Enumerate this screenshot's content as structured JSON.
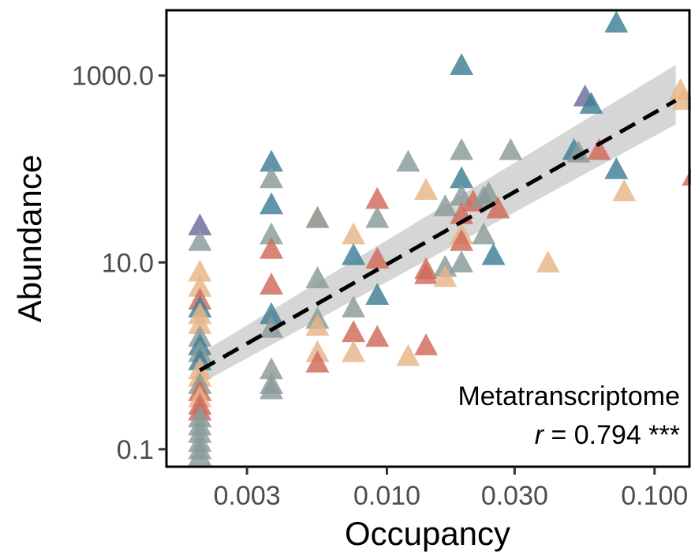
{
  "chart_data": {
    "type": "scatter",
    "title": "",
    "xlabel": "Occupancy",
    "ylabel": "Abundance",
    "x_scale": "log",
    "y_scale": "log",
    "xlim": [
      0.0015,
      0.135
    ],
    "ylim": [
      0.065,
      5000
    ],
    "x_ticks": [
      0.003,
      0.01,
      0.03,
      0.1
    ],
    "x_tick_labels": [
      "0.003",
      "0.010",
      "0.030",
      "0.100"
    ],
    "y_ticks": [
      0.1,
      10,
      1000
    ],
    "y_tick_labels": [
      "0.1",
      "10.0",
      "1000.0"
    ],
    "grid": false,
    "legend": "none",
    "marker": "triangle",
    "palette": [
      "#3e7f95",
      "#5c7f96",
      "#8a9a9a",
      "#d06a5a",
      "#e8b488",
      "#6b6a9a"
    ],
    "annotation": {
      "dataset": "Metatranscriptome",
      "r_symbol": "r",
      "r_text": " = 0.794 ***"
    },
    "fit": {
      "type": "linear (log-log)",
      "line_style": "dashed",
      "x": [
        0.002,
        0.12
      ],
      "y": [
        0.7,
        540
      ],
      "ci_lower": [
        0.5,
        300
      ],
      "ci_upper": [
        1.05,
        1300
      ]
    },
    "points": [
      [
        0.002,
        25,
        "#6b6a9a"
      ],
      [
        0.002,
        17,
        "#8a9a9a"
      ],
      [
        0.002,
        8,
        "#e8b488"
      ],
      [
        0.002,
        5.5,
        "#e8b488"
      ],
      [
        0.002,
        4,
        "#d06a5a"
      ],
      [
        0.002,
        3.3,
        "#3e7f95"
      ],
      [
        0.002,
        2.8,
        "#e8b488"
      ],
      [
        0.002,
        2.2,
        "#e8b488"
      ],
      [
        0.002,
        1.6,
        "#8a9a9a"
      ],
      [
        0.002,
        1.3,
        "#3e7f95"
      ],
      [
        0.002,
        1.1,
        "#8a9a9a"
      ],
      [
        0.002,
        0.9,
        "#3e7f95"
      ],
      [
        0.002,
        0.72,
        "#e8b488"
      ],
      [
        0.002,
        0.6,
        "#e8b488"
      ],
      [
        0.002,
        0.5,
        "#8a9a9a"
      ],
      [
        0.002,
        0.42,
        "#d06a5a"
      ],
      [
        0.002,
        0.36,
        "#e8b488"
      ],
      [
        0.002,
        0.3,
        "#d06a5a"
      ],
      [
        0.002,
        0.26,
        "#d06a5a"
      ],
      [
        0.002,
        0.22,
        "#8a9a9a"
      ],
      [
        0.002,
        0.18,
        "#8a9a9a"
      ],
      [
        0.002,
        0.15,
        "#8a9a9a"
      ],
      [
        0.002,
        0.12,
        "#8a9a9a"
      ],
      [
        0.002,
        0.1,
        "#8a9a9a"
      ],
      [
        0.002,
        0.085,
        "#8a9a9a"
      ],
      [
        0.0037,
        120,
        "#3e7f95"
      ],
      [
        0.0037,
        80,
        "#8a9a9a"
      ],
      [
        0.0037,
        42,
        "#3e7f95"
      ],
      [
        0.0037,
        20,
        "#8a9a9a"
      ],
      [
        0.0037,
        14,
        "#d06a5a"
      ],
      [
        0.0037,
        5.8,
        "#d06a5a"
      ],
      [
        0.0037,
        2.8,
        "#3e7f95"
      ],
      [
        0.0037,
        2.0,
        "#8a9a9a"
      ],
      [
        0.0037,
        0.72,
        "#8a9a9a"
      ],
      [
        0.0037,
        0.5,
        "#8a9a9a"
      ],
      [
        0.0037,
        0.44,
        "#8a9a9a"
      ],
      [
        0.0055,
        30,
        "#e8b488"
      ],
      [
        0.0055,
        30,
        "#8a9a9a"
      ],
      [
        0.0055,
        6.8,
        "#8a9a9a"
      ],
      [
        0.0055,
        2.5,
        "#8a9a9a"
      ],
      [
        0.0055,
        2.1,
        "#e8b488"
      ],
      [
        0.0055,
        1.1,
        "#e8b488"
      ],
      [
        0.0055,
        0.85,
        "#d06a5a"
      ],
      [
        0.0075,
        20,
        "#e8b488"
      ],
      [
        0.0075,
        12,
        "#3e7f95"
      ],
      [
        0.0075,
        3.3,
        "#8a9a9a"
      ],
      [
        0.0075,
        1.8,
        "#d06a5a"
      ],
      [
        0.0075,
        1.1,
        "#e8b488"
      ],
      [
        0.0092,
        48,
        "#d06a5a"
      ],
      [
        0.0092,
        30,
        "#8a9a9a"
      ],
      [
        0.0092,
        11,
        "#d06a5a"
      ],
      [
        0.0092,
        4.5,
        "#3e7f95"
      ],
      [
        0.0092,
        1.6,
        "#d06a5a"
      ],
      [
        0.012,
        120,
        "#8a9a9a"
      ],
      [
        0.012,
        1.0,
        "#e8b488"
      ],
      [
        0.014,
        60,
        "#e8b488"
      ],
      [
        0.014,
        7.5,
        "#d06a5a"
      ],
      [
        0.014,
        8.5,
        "#d06a5a"
      ],
      [
        0.014,
        1.3,
        "#d06a5a"
      ],
      [
        0.0165,
        40,
        "#8a9a9a"
      ],
      [
        0.0165,
        9,
        "#8a9a9a"
      ],
      [
        0.0165,
        7,
        "#e8b488"
      ],
      [
        0.019,
        1300,
        "#3e7f95"
      ],
      [
        0.019,
        160,
        "#8a9a9a"
      ],
      [
        0.019,
        80,
        "#3e7f95"
      ],
      [
        0.019,
        52,
        "#8a9a9a"
      ],
      [
        0.019,
        33,
        "#d06a5a"
      ],
      [
        0.019,
        20,
        "#e8b488"
      ],
      [
        0.019,
        17,
        "#d06a5a"
      ],
      [
        0.019,
        10,
        "#8a9a9a"
      ],
      [
        0.021,
        45,
        "#d06a5a"
      ],
      [
        0.023,
        50,
        "#8a9a9a"
      ],
      [
        0.023,
        20,
        "#8a9a9a"
      ],
      [
        0.024,
        55,
        "#8a9a9a"
      ],
      [
        0.025,
        12,
        "#3e7f95"
      ],
      [
        0.026,
        38,
        "#d06a5a"
      ],
      [
        0.029,
        160,
        "#8a9a9a"
      ],
      [
        0.04,
        10,
        "#e8b488"
      ],
      [
        0.05,
        160,
        "#3e7f95"
      ],
      [
        0.052,
        150,
        "#8a9a9a"
      ],
      [
        0.055,
        600,
        "#6b6a9a"
      ],
      [
        0.058,
        500,
        "#3e7f95"
      ],
      [
        0.062,
        160,
        "#d06a5a"
      ],
      [
        0.072,
        3700,
        "#3e7f95"
      ],
      [
        0.072,
        100,
        "#3e7f95"
      ],
      [
        0.077,
        58,
        "#e8b488"
      ],
      [
        0.125,
        700,
        "#e8b488"
      ],
      [
        0.128,
        550,
        "#e8b488"
      ],
      [
        0.14,
        85,
        "#d06a5a"
      ]
    ]
  }
}
